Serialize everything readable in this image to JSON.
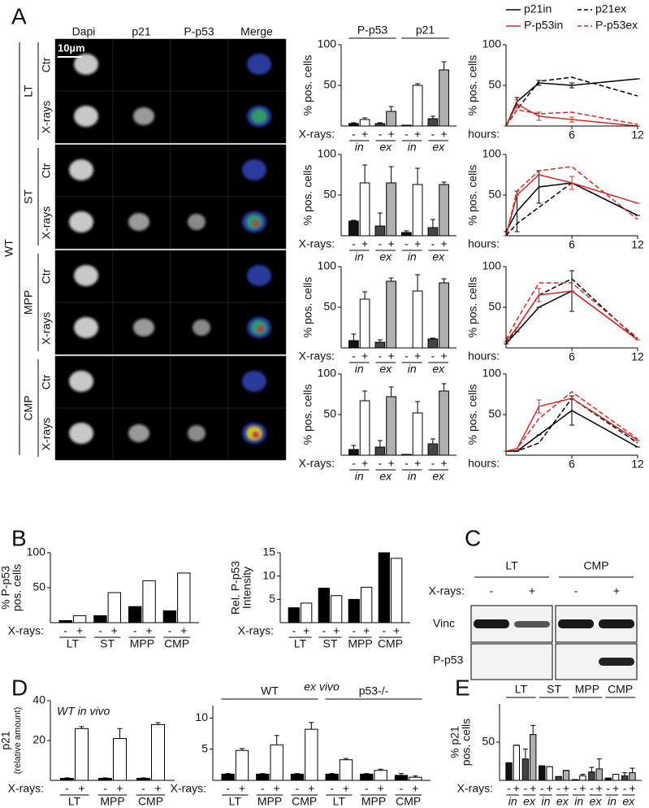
{
  "panel_labels": [
    "A",
    "B",
    "C",
    "D",
    "E"
  ],
  "panel_a": {
    "genotype": "WT",
    "column_headers": [
      "Dapi",
      "p21",
      "P-p53",
      "Merge"
    ],
    "scale_bar": "10µm",
    "populations": [
      "LT",
      "ST",
      "MPP",
      "CMP"
    ],
    "conditions": [
      "Ctr",
      "X-rays"
    ]
  },
  "panel_c": {
    "groups": [
      "LT",
      "CMP"
    ],
    "xlabel": "X-rays:",
    "treatments": [
      "-",
      "+",
      "-",
      "+"
    ],
    "bands": [
      "Vinc",
      "P-p53"
    ]
  },
  "chart_data": [
    {
      "type": "bar",
      "ylabel": [
        "% pos. cells"
      ],
      "xlabel": "X-rays:",
      "ylim": [
        0,
        100
      ],
      "yticks": [
        50,
        100
      ],
      "groups": [
        "P-p53",
        "p21"
      ],
      "subgroups": [
        "in",
        "ex",
        "in",
        "ex"
      ],
      "subgroup_italic": true,
      "categories": [
        "-",
        "+",
        "-",
        "+",
        "-",
        "+",
        "-",
        "+"
      ],
      "colors": [
        "#111111",
        "#ffffff",
        "#444444",
        "#b0b0b0",
        "#111111",
        "#ffffff",
        "#444444",
        "#b0b0b0"
      ],
      "values": [
        3,
        8,
        3,
        18,
        1,
        50,
        9,
        69
      ],
      "errors": [
        1,
        2,
        1,
        6,
        0,
        2,
        3,
        10
      ]
    },
    {
      "type": "bar",
      "ylabel": [
        "% pos. cells"
      ],
      "xlabel": "X-rays:",
      "ylim": [
        0,
        100
      ],
      "yticks": [
        50,
        100
      ],
      "subgroups": [
        "in",
        "ex",
        "in",
        "ex"
      ],
      "subgroup_italic": true,
      "categories": [
        "-",
        "+",
        "-",
        "+",
        "-",
        "+",
        "-",
        "+"
      ],
      "colors": [
        "#111111",
        "#ffffff",
        "#444444",
        "#b0b0b0",
        "#111111",
        "#ffffff",
        "#444444",
        "#b0b0b0"
      ],
      "values": [
        18,
        65,
        12,
        65,
        4,
        63,
        10,
        63
      ],
      "errors": [
        1,
        22,
        16,
        20,
        2,
        20,
        10,
        3
      ]
    },
    {
      "type": "bar",
      "ylabel": [
        "% pos. cells"
      ],
      "xlabel": "X-rays:",
      "ylim": [
        0,
        100
      ],
      "yticks": [
        50,
        100
      ],
      "subgroups": [
        "in",
        "ex",
        "in",
        "ex"
      ],
      "subgroup_italic": true,
      "categories": [
        "-",
        "+",
        "-",
        "+",
        "-",
        "+",
        "-",
        "+"
      ],
      "colors": [
        "#111111",
        "#ffffff",
        "#444444",
        "#b0b0b0",
        "#111111",
        "#ffffff",
        "#444444",
        "#b0b0b0"
      ],
      "values": [
        9,
        60,
        7,
        82,
        0,
        70,
        11,
        80
      ],
      "errors": [
        8,
        9,
        3,
        4,
        0,
        20,
        1,
        5
      ]
    },
    {
      "type": "bar",
      "ylabel": [
        "% pos. cells"
      ],
      "xlabel": "X-rays:",
      "ylim": [
        0,
        100
      ],
      "yticks": [
        50,
        100
      ],
      "subgroups": [
        "in",
        "ex",
        "in",
        "ex"
      ],
      "subgroup_italic": true,
      "categories": [
        "-",
        "+",
        "-",
        "+",
        "-",
        "+",
        "-",
        "+"
      ],
      "colors": [
        "#111111",
        "#ffffff",
        "#444444",
        "#b0b0b0",
        "#111111",
        "#ffffff",
        "#444444",
        "#b0b0b0"
      ],
      "values": [
        7,
        67,
        10,
        72,
        1,
        52,
        14,
        79
      ],
      "errors": [
        5,
        12,
        8,
        12,
        0,
        14,
        6,
        9
      ]
    },
    {
      "type": "line",
      "ylabel": [
        "% pos. cells"
      ],
      "xlabel": "hours:",
      "xlim": [
        0,
        12
      ],
      "xticks": [
        6,
        12
      ],
      "ylim": [
        0,
        100
      ],
      "yticks": [
        50,
        100
      ],
      "x": [
        0,
        1,
        3,
        6,
        12
      ],
      "legend": "top",
      "series": [
        {
          "name": "p21in",
          "color": "#000000",
          "dashed": false,
          "values": [
            0,
            30,
            53,
            50,
            58
          ],
          "errors": [
            0,
            5,
            3,
            3,
            0
          ]
        },
        {
          "name": "p21ex",
          "color": "#000000",
          "dashed": true,
          "values": [
            0,
            20,
            55,
            60,
            37
          ]
        },
        {
          "name": "P-p53in",
          "color": "#d42a2a",
          "dashed": false,
          "values": [
            0,
            27,
            12,
            8,
            0
          ],
          "errors": [
            0,
            5,
            5,
            3,
            0
          ]
        },
        {
          "name": "P-p53ex",
          "color": "#d42a2a",
          "dashed": true,
          "values": [
            0,
            20,
            15,
            17,
            2
          ]
        }
      ]
    },
    {
      "type": "line",
      "ylabel": [
        "% pos. cells"
      ],
      "xlabel": "hours:",
      "xlim": [
        0,
        12
      ],
      "xticks": [
        6,
        12
      ],
      "ylim": [
        0,
        100
      ],
      "yticks": [
        50,
        100
      ],
      "x": [
        0,
        1,
        3,
        6,
        12
      ],
      "series": [
        {
          "color": "#000000",
          "dashed": false,
          "values": [
            5,
            30,
            60,
            65,
            25
          ],
          "errors": [
            0,
            25,
            20,
            8,
            0
          ]
        },
        {
          "color": "#000000",
          "dashed": true,
          "values": [
            0,
            15,
            35,
            65,
            25
          ]
        },
        {
          "color": "#d42a2a",
          "dashed": false,
          "values": [
            0,
            50,
            75,
            65,
            40
          ],
          "errors": [
            0,
            0,
            0,
            8,
            0
          ]
        },
        {
          "color": "#d42a2a",
          "dashed": true,
          "values": [
            0,
            55,
            80,
            85,
            20
          ]
        }
      ]
    },
    {
      "type": "line",
      "ylabel": [
        "% pos. cells"
      ],
      "xlabel": "hours:",
      "xlim": [
        0,
        12
      ],
      "xticks": [
        6,
        12
      ],
      "ylim": [
        0,
        100
      ],
      "yticks": [
        50,
        100
      ],
      "x": [
        0,
        1,
        3,
        6,
        12
      ],
      "series": [
        {
          "color": "#000000",
          "dashed": false,
          "values": [
            5,
            20,
            50,
            70,
            10
          ],
          "errors": [
            0,
            0,
            0,
            25,
            0
          ]
        },
        {
          "color": "#000000",
          "dashed": true,
          "values": [
            5,
            25,
            65,
            85,
            10
          ]
        },
        {
          "color": "#d42a2a",
          "dashed": false,
          "values": [
            8,
            25,
            65,
            70,
            10
          ],
          "errors": [
            0,
            0,
            8,
            0,
            0
          ]
        },
        {
          "color": "#d42a2a",
          "dashed": true,
          "values": [
            10,
            35,
            80,
            80,
            12
          ]
        }
      ]
    },
    {
      "type": "line",
      "ylabel": [
        "% pos. cells"
      ],
      "xlabel": "hours:",
      "xlim": [
        0,
        12
      ],
      "xticks": [
        6,
        12
      ],
      "ylim": [
        0,
        100
      ],
      "yticks": [
        50,
        100
      ],
      "x": [
        0,
        1,
        3,
        6,
        12
      ],
      "series": [
        {
          "color": "#000000",
          "dashed": false,
          "values": [
            5,
            5,
            25,
            55,
            10
          ],
          "errors": [
            0,
            0,
            0,
            18,
            0
          ]
        },
        {
          "color": "#000000",
          "dashed": true,
          "values": [
            5,
            5,
            15,
            70,
            15
          ]
        },
        {
          "color": "#d42a2a",
          "dashed": false,
          "values": [
            5,
            8,
            60,
            70,
            18
          ],
          "errors": [
            0,
            0,
            8,
            0,
            0
          ]
        },
        {
          "color": "#d42a2a",
          "dashed": true,
          "values": [
            5,
            8,
            45,
            78,
            20
          ]
        }
      ]
    },
    {
      "type": "bar",
      "ylabel": [
        "% P-p53",
        "pos. cells"
      ],
      "xlabel": "X-rays:",
      "ylim": [
        0,
        100
      ],
      "yticks": [
        50,
        100
      ],
      "subgroups": [
        "LT",
        "ST",
        "MPP",
        "CMP"
      ],
      "categories": [
        "-",
        "+",
        "-",
        "+",
        "-",
        "+",
        "-",
        "+"
      ],
      "colors": [
        "#000000",
        "#ffffff",
        "#000000",
        "#ffffff",
        "#000000",
        "#ffffff",
        "#000000",
        "#ffffff"
      ],
      "values": [
        3,
        10,
        10,
        43,
        23,
        60,
        17,
        71
      ]
    },
    {
      "type": "bar",
      "ylabel": [
        "Rel. P-p53",
        "Intensity"
      ],
      "xlabel": "X-rays:",
      "ylim": [
        0,
        15
      ],
      "yticks": [
        5,
        10,
        15
      ],
      "subgroups": [
        "LT",
        "ST",
        "MPP",
        "CMP"
      ],
      "categories": [
        "-",
        "+",
        "-",
        "+",
        "-",
        "+",
        "-",
        "+"
      ],
      "colors": [
        "#000000",
        "#ffffff",
        "#000000",
        "#ffffff",
        "#000000",
        "#ffffff",
        "#000000",
        "#ffffff"
      ],
      "values": [
        3.2,
        4.2,
        7.4,
        5.8,
        5,
        7.6,
        15,
        13.8
      ]
    },
    {
      "type": "bar",
      "title": "WT in vivo",
      "ylabel": [
        "p21",
        "(relative amount)"
      ],
      "xlabel": "X-rays:",
      "ylim": [
        0,
        40
      ],
      "yticks": [
        20,
        40
      ],
      "subgroups": [
        "LT",
        "MPP",
        "CMP"
      ],
      "categories": [
        "-",
        "+",
        "-",
        "+",
        "-",
        "+"
      ],
      "colors": [
        "#000000",
        "#ffffff",
        "#000000",
        "#ffffff",
        "#000000",
        "#ffffff"
      ],
      "values": [
        1,
        26,
        1,
        21,
        1,
        28
      ],
      "errors": [
        0.3,
        1,
        0.3,
        5,
        0.3,
        1
      ]
    },
    {
      "type": "bar",
      "title": "ex vivo",
      "xlabel": "X-rays:",
      "ylim": [
        0,
        12
      ],
      "yticks": [
        5,
        10
      ],
      "groups": [
        "WT",
        "p53-/-"
      ],
      "subgroups": [
        "LT",
        "MPP",
        "CMP",
        "LT",
        "MPP",
        "CMP"
      ],
      "categories": [
        "-",
        "+",
        "-",
        "+",
        "-",
        "+",
        "-",
        "+",
        "-",
        "+",
        "-",
        "+"
      ],
      "colors": [
        "#000000",
        "#ffffff",
        "#000000",
        "#ffffff",
        "#000000",
        "#ffffff",
        "#000000",
        "#ffffff",
        "#000000",
        "#ffffff",
        "#000000",
        "#ffffff"
      ],
      "values": [
        1,
        4.8,
        1,
        5.7,
        1,
        8.2,
        1,
        3.3,
        1,
        1.6,
        0.8,
        0.5
      ],
      "errors": [
        0.1,
        0.3,
        0.1,
        1.5,
        0.1,
        1.1,
        0.1,
        0.2,
        0.1,
        0.2,
        0.3,
        0.2
      ]
    },
    {
      "type": "bar",
      "ylabel": [
        "% p21",
        "pos. cells"
      ],
      "xlabel": "X-rays:",
      "ylim": [
        0,
        100
      ],
      "yticks": [
        50
      ],
      "groups": [
        "LT",
        "ST",
        "MPP",
        "CMP"
      ],
      "subgroups": [
        "in",
        "ex",
        "in",
        "ex",
        "in",
        "ex",
        "in",
        "ex"
      ],
      "subgroup_italic": true,
      "categories": [
        "-",
        "+",
        "-",
        "+",
        "-",
        "+",
        "-",
        "+",
        "-",
        "+",
        "-",
        "+",
        "-",
        "+",
        "-",
        "+"
      ],
      "colors": [
        "#111111",
        "#ffffff",
        "#444444",
        "#b0b0b0",
        "#111111",
        "#ffffff",
        "#444444",
        "#b0b0b0",
        "#111111",
        "#ffffff",
        "#444444",
        "#b0b0b0",
        "#111111",
        "#ffffff",
        "#444444",
        "#b0b0b0"
      ],
      "values": [
        23,
        46,
        28,
        60,
        19,
        18,
        5,
        13,
        1,
        6,
        11,
        15,
        3,
        8,
        6,
        10
      ],
      "errors": [
        0,
        0,
        13,
        12,
        0,
        0,
        0,
        0,
        0,
        2,
        6,
        13,
        0,
        0,
        4,
        6
      ]
    }
  ]
}
